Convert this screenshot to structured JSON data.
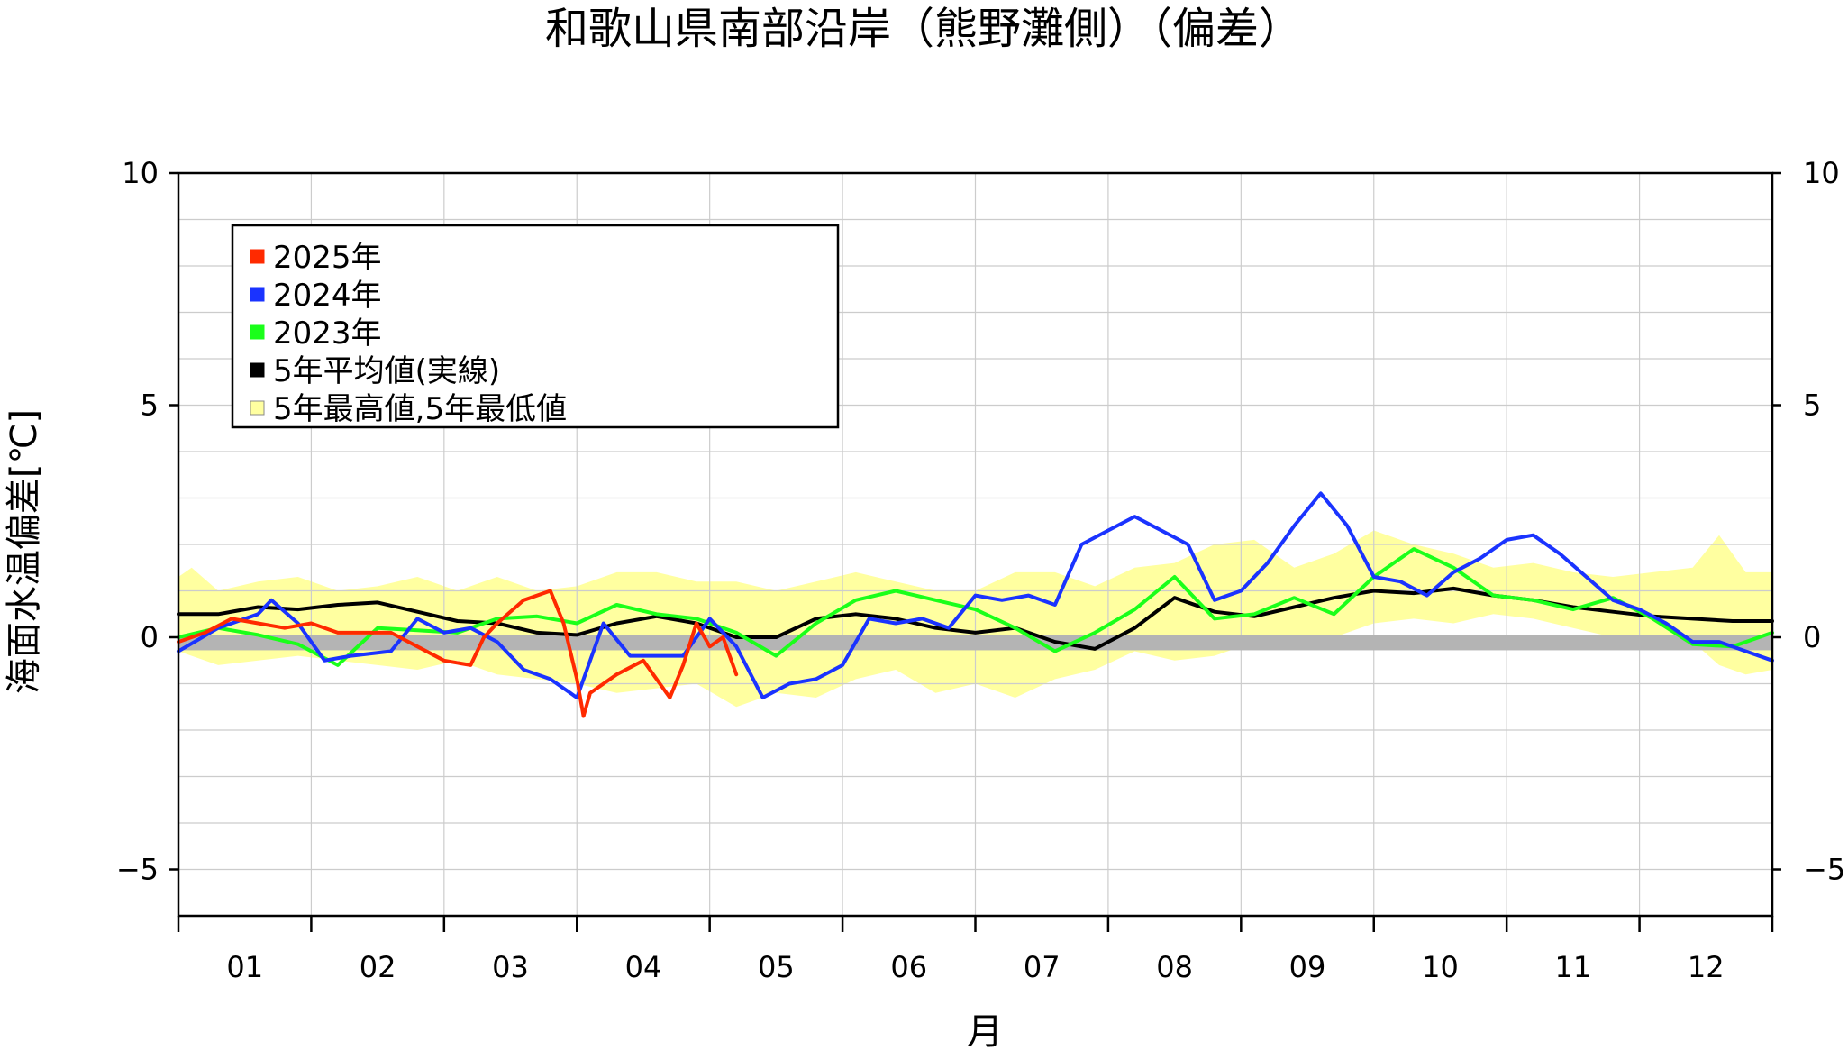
{
  "chart_data": {
    "type": "line",
    "title": "和歌山県南部沿岸（熊野灘側）（偏差）",
    "xlabel": "月",
    "ylabel": "海面水温偏差[℃]",
    "ylim": [
      -6,
      10
    ],
    "xlim": [
      0,
      12
    ],
    "yticks": [
      10,
      5,
      0,
      -5
    ],
    "ytick_labels": [
      "10",
      "5",
      "0",
      "−5"
    ],
    "months": [
      "01",
      "02",
      "03",
      "04",
      "05",
      "06",
      "07",
      "08",
      "09",
      "10",
      "11",
      "12"
    ],
    "grid": true,
    "legend_position": "top-left",
    "legend": [
      {
        "label": "2025年",
        "color": "#ff2a00"
      },
      {
        "label": "2024年",
        "color": "#1a33ff"
      },
      {
        "label": "2023年",
        "color": "#1aff1a"
      },
      {
        "label": "5年平均値(実線)",
        "color": "#000000"
      },
      {
        "label": "5年最高値,5年最低値",
        "color": "#ffffa0"
      }
    ],
    "colors": {
      "band": "#ffffa0",
      "zero_band": "#b4b4b4",
      "grid": "#cccccc"
    },
    "band": {
      "x": [
        0,
        0.1,
        0.3,
        0.6,
        0.9,
        1.2,
        1.5,
        1.8,
        2.1,
        2.4,
        2.7,
        3.0,
        3.3,
        3.6,
        3.9,
        4.2,
        4.5,
        4.8,
        5.1,
        5.4,
        5.7,
        6.0,
        6.3,
        6.6,
        6.9,
        7.2,
        7.5,
        7.8,
        8.1,
        8.4,
        8.7,
        9.0,
        9.3,
        9.6,
        9.9,
        10.2,
        10.5,
        10.8,
        11.1,
        11.4,
        11.6,
        11.8,
        12
      ],
      "upper": [
        1.3,
        1.5,
        1.0,
        1.2,
        1.3,
        1.0,
        1.1,
        1.3,
        1.0,
        1.3,
        1.0,
        1.1,
        1.4,
        1.4,
        1.2,
        1.2,
        1.0,
        1.2,
        1.4,
        1.2,
        1.0,
        1.0,
        1.4,
        1.4,
        1.1,
        1.5,
        1.6,
        2.0,
        2.1,
        1.5,
        1.8,
        2.3,
        2.0,
        1.8,
        1.5,
        1.6,
        1.4,
        1.3,
        1.4,
        1.5,
        2.2,
        1.4,
        1.4
      ],
      "lower": [
        -0.3,
        -0.4,
        -0.6,
        -0.5,
        -0.4,
        -0.5,
        -0.6,
        -0.7,
        -0.5,
        -0.8,
        -0.9,
        -1.0,
        -1.2,
        -1.1,
        -1.0,
        -1.5,
        -1.2,
        -1.3,
        -0.9,
        -0.7,
        -1.2,
        -1.0,
        -1.3,
        -0.9,
        -0.7,
        -0.3,
        -0.5,
        -0.4,
        -0.1,
        0.0,
        0.0,
        0.3,
        0.4,
        0.3,
        0.5,
        0.4,
        0.2,
        0.0,
        -0.2,
        -0.1,
        -0.6,
        -0.8,
        -0.7
      ]
    },
    "series": [
      {
        "name": "5年平均値(実線)",
        "color": "#000000",
        "x": [
          0,
          0.3,
          0.6,
          0.9,
          1.2,
          1.5,
          1.8,
          2.1,
          2.4,
          2.7,
          3.0,
          3.3,
          3.6,
          3.9,
          4.2,
          4.5,
          4.8,
          5.1,
          5.4,
          5.7,
          6.0,
          6.3,
          6.6,
          6.9,
          7.2,
          7.5,
          7.8,
          8.1,
          8.4,
          8.7,
          9.0,
          9.3,
          9.6,
          9.9,
          10.2,
          10.5,
          10.8,
          11.1,
          11.4,
          11.7,
          12
        ],
        "y": [
          0.5,
          0.5,
          0.65,
          0.6,
          0.7,
          0.75,
          0.55,
          0.35,
          0.3,
          0.1,
          0.05,
          0.3,
          0.45,
          0.3,
          0.0,
          0.0,
          0.4,
          0.5,
          0.4,
          0.2,
          0.1,
          0.2,
          -0.1,
          -0.25,
          0.2,
          0.85,
          0.55,
          0.45,
          0.65,
          0.85,
          1.0,
          0.95,
          1.05,
          0.9,
          0.8,
          0.65,
          0.55,
          0.45,
          0.4,
          0.35,
          0.35
        ]
      },
      {
        "name": "2023年",
        "color": "#1aff1a",
        "x": [
          0,
          0.3,
          0.6,
          0.9,
          1.2,
          1.5,
          1.8,
          2.1,
          2.4,
          2.7,
          3.0,
          3.3,
          3.6,
          3.9,
          4.2,
          4.5,
          4.8,
          5.1,
          5.4,
          5.7,
          6.0,
          6.3,
          6.6,
          6.9,
          7.2,
          7.5,
          7.8,
          8.1,
          8.4,
          8.7,
          9.0,
          9.3,
          9.6,
          9.9,
          10.2,
          10.5,
          10.8,
          11.1,
          11.4,
          11.7,
          12
        ],
        "y": [
          0.0,
          0.2,
          0.05,
          -0.15,
          -0.6,
          0.2,
          0.15,
          0.1,
          0.4,
          0.45,
          0.3,
          0.7,
          0.5,
          0.4,
          0.1,
          -0.4,
          0.3,
          0.8,
          1.0,
          0.8,
          0.6,
          0.2,
          -0.3,
          0.1,
          0.6,
          1.3,
          0.4,
          0.5,
          0.85,
          0.5,
          1.3,
          1.9,
          1.5,
          0.9,
          0.8,
          0.6,
          0.85,
          0.4,
          -0.15,
          -0.2,
          0.1
        ]
      },
      {
        "name": "2024年",
        "color": "#1a33ff",
        "x": [
          0,
          0.3,
          0.6,
          0.7,
          0.9,
          1.1,
          1.3,
          1.6,
          1.8,
          2.0,
          2.2,
          2.4,
          2.6,
          2.8,
          3.0,
          3.2,
          3.4,
          3.6,
          3.8,
          4.0,
          4.2,
          4.4,
          4.6,
          4.8,
          5.0,
          5.2,
          5.4,
          5.6,
          5.8,
          6.0,
          6.2,
          6.4,
          6.6,
          6.8,
          7.0,
          7.2,
          7.4,
          7.6,
          7.8,
          8.0,
          8.2,
          8.4,
          8.6,
          8.8,
          9.0,
          9.2,
          9.4,
          9.6,
          9.8,
          10.0,
          10.2,
          10.4,
          10.6,
          10.8,
          11.0,
          11.2,
          11.4,
          11.6,
          11.8,
          12
        ],
        "y": [
          -0.3,
          0.2,
          0.5,
          0.8,
          0.3,
          -0.5,
          -0.4,
          -0.3,
          0.4,
          0.1,
          0.2,
          -0.1,
          -0.7,
          -0.9,
          -1.3,
          0.3,
          -0.4,
          -0.4,
          -0.4,
          0.4,
          -0.2,
          -1.3,
          -1.0,
          -0.9,
          -0.6,
          0.4,
          0.3,
          0.4,
          0.2,
          0.9,
          0.8,
          0.9,
          0.7,
          2.0,
          2.3,
          2.6,
          2.3,
          2.0,
          0.8,
          1.0,
          1.6,
          2.4,
          3.1,
          2.4,
          1.3,
          1.2,
          0.9,
          1.4,
          1.7,
          2.1,
          2.2,
          1.8,
          1.3,
          0.8,
          0.6,
          0.3,
          -0.1,
          -0.1,
          -0.3,
          -0.5
        ]
      },
      {
        "name": "2025年",
        "color": "#ff2a00",
        "x": [
          0,
          0.1,
          0.2,
          0.4,
          0.6,
          0.8,
          1.0,
          1.2,
          1.4,
          1.6,
          1.8,
          2.0,
          2.2,
          2.3,
          2.4,
          2.6,
          2.8,
          2.9,
          3.0,
          3.05,
          3.1,
          3.3,
          3.5,
          3.7,
          3.8,
          3.9,
          4.0,
          4.1,
          4.2
        ],
        "y": [
          -0.1,
          0.0,
          0.1,
          0.4,
          0.3,
          0.2,
          0.3,
          0.1,
          0.1,
          0.1,
          -0.2,
          -0.5,
          -0.6,
          0.0,
          0.3,
          0.8,
          1.0,
          0.3,
          -0.9,
          -1.7,
          -1.2,
          -0.8,
          -0.5,
          -1.3,
          -0.6,
          0.3,
          -0.2,
          0.0,
          -0.8
        ]
      }
    ]
  }
}
